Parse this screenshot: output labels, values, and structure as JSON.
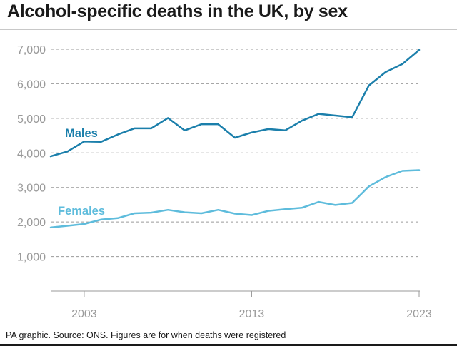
{
  "title": "Alcohol-specific deaths in the UK, by sex",
  "footer": "PA graphic. Source: ONS. Figures are for when deaths were registered",
  "colors": {
    "males": "#1b7fab",
    "females": "#5ebcdc",
    "grid": "#9a9a9a",
    "axis_text": "#9a9a9a",
    "text": "#1a1a1a"
  },
  "chart_data": {
    "type": "line",
    "title": "Alcohol-specific deaths in the UK, by sex",
    "xlabel": "",
    "ylabel": "",
    "xlim": [
      2001,
      2023
    ],
    "ylim": [
      0,
      7000
    ],
    "x_ticks": [
      2003,
      2013,
      2023
    ],
    "x_tick_labels": [
      "2003",
      "2013",
      "2023"
    ],
    "y_ticks": [
      1000,
      2000,
      3000,
      4000,
      5000,
      6000,
      7000
    ],
    "y_tick_labels": [
      "1,000",
      "2,000",
      "3,000",
      "4,000",
      "5,000",
      "6,000",
      "7,000"
    ],
    "grid": "horizontal dashed",
    "x": [
      2001,
      2002,
      2003,
      2004,
      2005,
      2006,
      2007,
      2008,
      2009,
      2010,
      2011,
      2012,
      2013,
      2014,
      2015,
      2016,
      2017,
      2018,
      2019,
      2020,
      2021,
      2022,
      2023
    ],
    "series": [
      {
        "name": "Males",
        "color": "#1b7fab",
        "values": [
          3900,
          4040,
          4330,
          4320,
          4530,
          4710,
          4710,
          5010,
          4650,
          4830,
          4830,
          4440,
          4590,
          4690,
          4650,
          4930,
          5130,
          5080,
          5030,
          5950,
          6340,
          6570,
          6980
        ]
      },
      {
        "name": "Females",
        "color": "#5ebcdc",
        "values": [
          1840,
          1890,
          1940,
          2070,
          2110,
          2250,
          2270,
          2350,
          2280,
          2250,
          2350,
          2240,
          2200,
          2320,
          2370,
          2410,
          2580,
          2490,
          2550,
          3030,
          3300,
          3480,
          3500
        ]
      }
    ]
  }
}
